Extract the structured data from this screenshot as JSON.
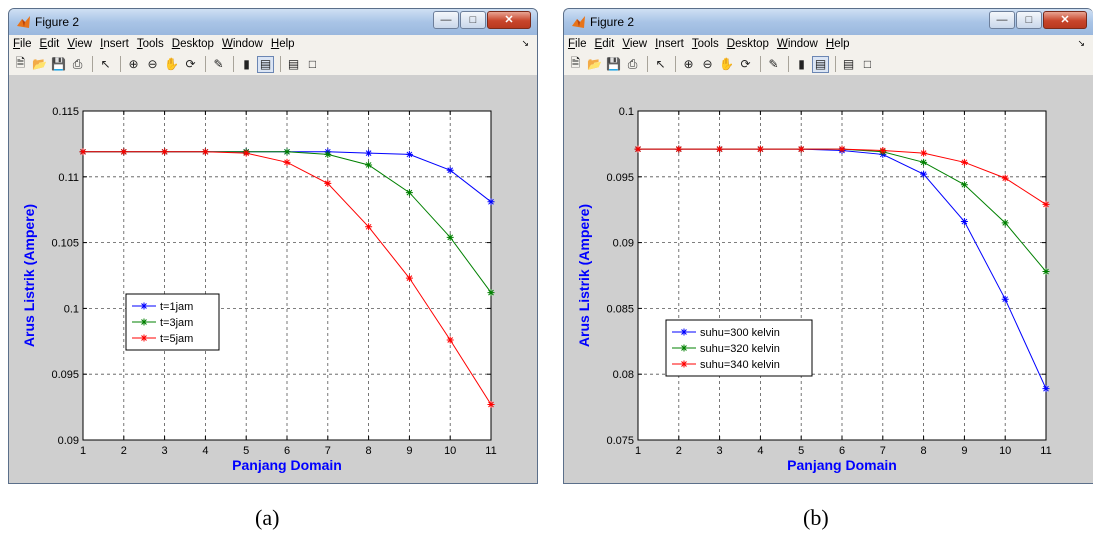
{
  "windows": [
    {
      "id": "a",
      "title": "Figure 2",
      "menu": [
        "File",
        "Edit",
        "View",
        "Insert",
        "Tools",
        "Desktop",
        "Window",
        "Help"
      ],
      "caption": "(a)"
    },
    {
      "id": "b",
      "title": "Figure 2",
      "menu": [
        "File",
        "Edit",
        "View",
        "Insert",
        "Tools",
        "Desktop",
        "Window",
        "Help"
      ],
      "caption": "(b)"
    }
  ],
  "chart_data": [
    {
      "type": "line",
      "xlabel": "Panjang Domain",
      "ylabel": "Arus Listrik (Ampere)",
      "xlim": [
        1,
        11
      ],
      "ylim": [
        0.09,
        0.115
      ],
      "xticks": [
        "1",
        "2",
        "3",
        "4",
        "5",
        "6",
        "7",
        "8",
        "9",
        "10",
        "11"
      ],
      "yticks": [
        "0.09",
        "0.095",
        "0.1",
        "0.105",
        "0.11",
        "0.115"
      ],
      "grid": true,
      "legend_position": "center-left",
      "x": [
        1,
        2,
        3,
        4,
        5,
        6,
        7,
        8,
        9,
        10,
        11
      ],
      "series": [
        {
          "name": "t=1jam",
          "color": "#0000ff",
          "values": [
            0.1119,
            0.1119,
            0.1119,
            0.1119,
            0.1119,
            0.1119,
            0.1119,
            0.1118,
            0.1117,
            0.1105,
            0.1081
          ]
        },
        {
          "name": "t=3jam",
          "color": "#008000",
          "values": [
            0.1119,
            0.1119,
            0.1119,
            0.1119,
            0.1119,
            0.1119,
            0.1117,
            0.1109,
            0.1088,
            0.1054,
            0.1012
          ]
        },
        {
          "name": "t=5jam",
          "color": "#ff0000",
          "values": [
            0.1119,
            0.1119,
            0.1119,
            0.1119,
            0.1118,
            0.1111,
            0.1095,
            0.1062,
            0.1023,
            0.0976,
            0.0927
          ]
        }
      ]
    },
    {
      "type": "line",
      "xlabel": "Panjang Domain",
      "ylabel": "Arus Listrik (Ampere)",
      "xlim": [
        1,
        11
      ],
      "ylim": [
        0.075,
        0.1
      ],
      "xticks": [
        "1",
        "2",
        "3",
        "4",
        "5",
        "6",
        "7",
        "8",
        "9",
        "10",
        "11"
      ],
      "yticks": [
        "0.075",
        "0.08",
        "0.085",
        "0.09",
        "0.095",
        "0.1"
      ],
      "grid": true,
      "legend_position": "bottom-left",
      "x": [
        1,
        2,
        3,
        4,
        5,
        6,
        7,
        8,
        9,
        10,
        11
      ],
      "series": [
        {
          "name": "suhu=300 kelvin",
          "color": "#0000ff",
          "values": [
            0.0971,
            0.0971,
            0.0971,
            0.0971,
            0.0971,
            0.097,
            0.0967,
            0.0952,
            0.0916,
            0.0857,
            0.0789
          ]
        },
        {
          "name": "suhu=320 kelvin",
          "color": "#008000",
          "values": [
            0.0971,
            0.0971,
            0.0971,
            0.0971,
            0.0971,
            0.0971,
            0.0969,
            0.0961,
            0.0944,
            0.0915,
            0.0878
          ]
        },
        {
          "name": "suhu=340 kelvin",
          "color": "#ff0000",
          "values": [
            0.0971,
            0.0971,
            0.0971,
            0.0971,
            0.0971,
            0.0971,
            0.097,
            0.0968,
            0.0961,
            0.0949,
            0.0929
          ]
        }
      ]
    }
  ]
}
